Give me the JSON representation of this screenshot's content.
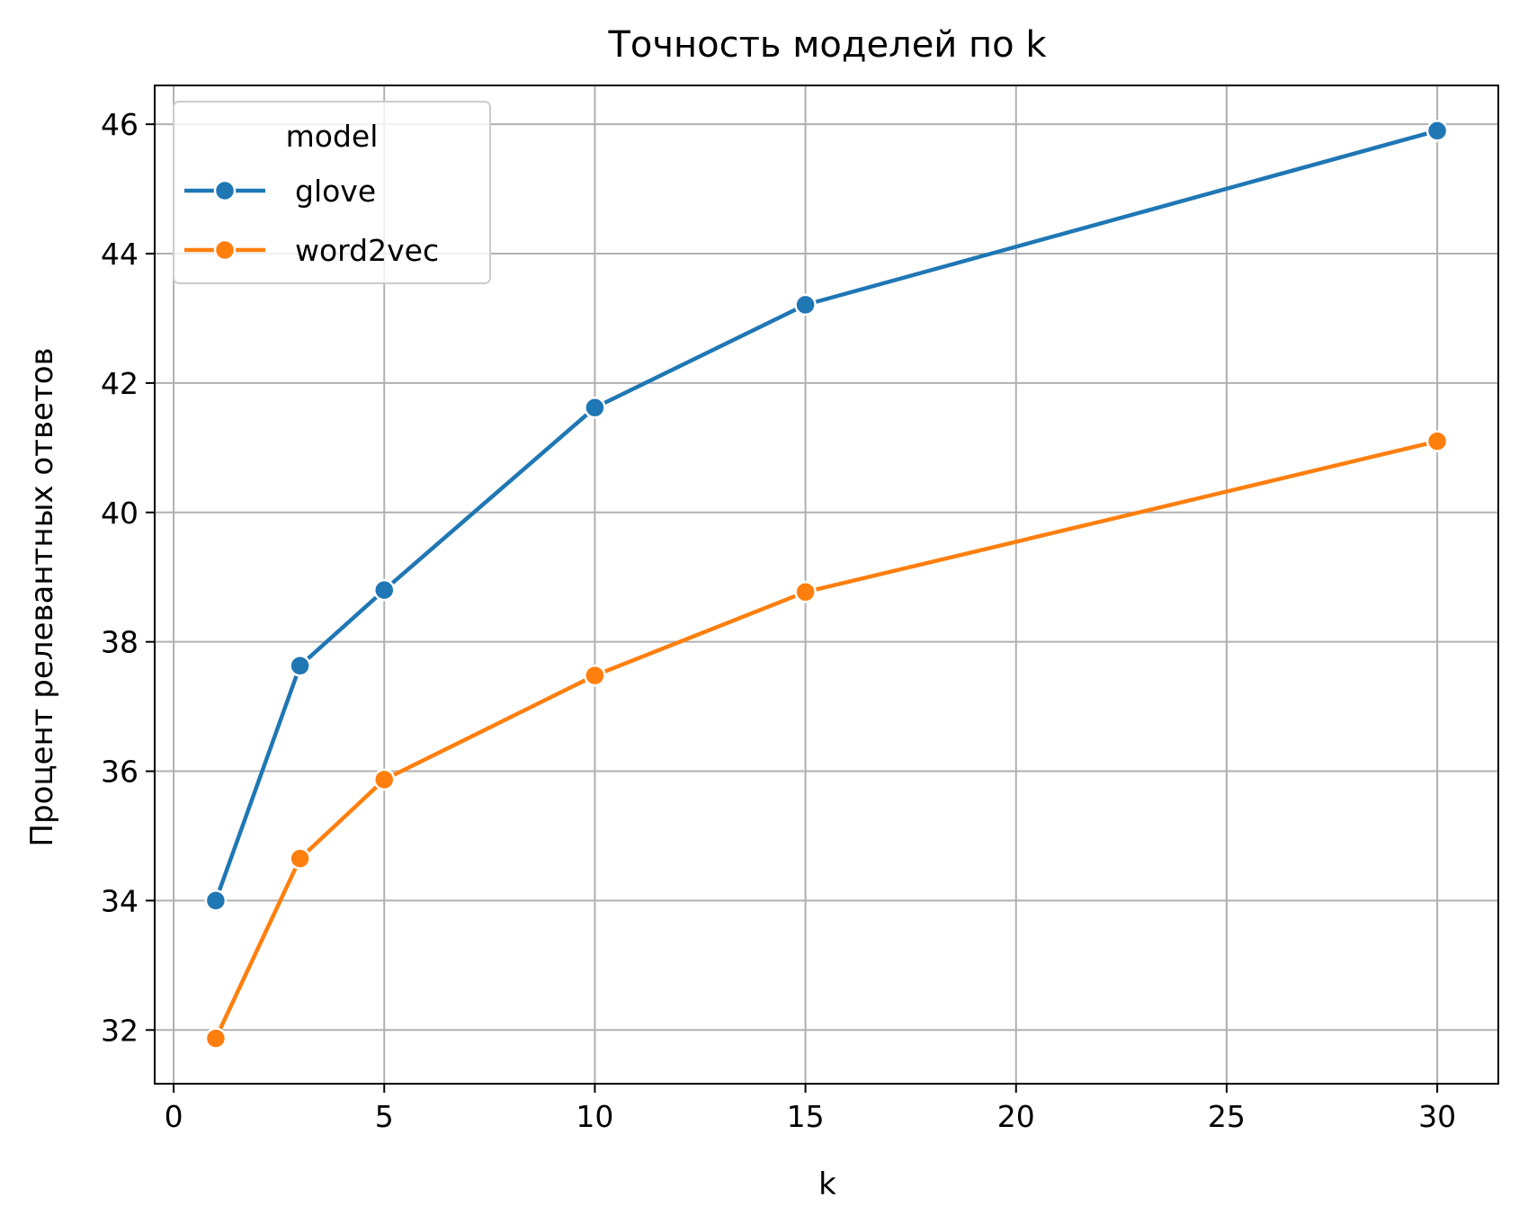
{
  "chart_data": {
    "type": "line",
    "title": "Точность моделей по k",
    "xlabel": "k",
    "ylabel": "Процент релевантных ответов",
    "xlim": [
      -0.45,
      31.45
    ],
    "ylim": [
      31.17,
      46.6
    ],
    "xticks": [
      0,
      5,
      10,
      15,
      20,
      25,
      30
    ],
    "yticks": [
      32,
      34,
      36,
      38,
      40,
      42,
      44,
      46
    ],
    "grid": true,
    "legend": {
      "title": "model",
      "placement": "top-left"
    },
    "x": [
      1,
      3,
      5,
      10,
      15,
      30
    ],
    "series": [
      {
        "name": "glove",
        "color": "#1f77b4",
        "values": [
          34.0,
          37.63,
          38.8,
          41.62,
          43.21,
          45.9
        ]
      },
      {
        "name": "word2vec",
        "color": "#ff7f0e",
        "values": [
          31.87,
          34.65,
          35.87,
          37.48,
          38.77,
          41.1
        ]
      }
    ]
  }
}
